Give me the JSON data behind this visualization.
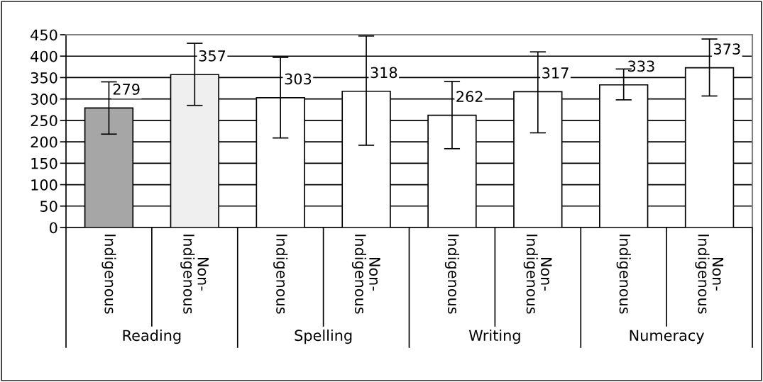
{
  "chart_data": {
    "type": "bar",
    "categories": [
      "Indigenous",
      "Non-Indigenous",
      "Indigenous",
      "Non-Indigenous",
      "Indigenous",
      "Non-Indigenous",
      "Indigenous",
      "Non-Indigenous"
    ],
    "values": [
      279,
      357,
      303,
      318,
      262,
      317,
      333,
      373
    ],
    "colors": [
      "#a6a6a6",
      "#efefef",
      "#ffffff",
      "#ffffff",
      "#ffffff",
      "#ffffff",
      "#ffffff",
      "#ffffff"
    ],
    "errors": [
      [
        218,
        340
      ],
      [
        285,
        430
      ],
      [
        209,
        397
      ],
      [
        192,
        447
      ],
      [
        184,
        341
      ],
      [
        221,
        410
      ],
      [
        298,
        370
      ],
      [
        307,
        440
      ]
    ],
    "annotations": [
      "Reading",
      "Spelling",
      "Writing",
      "Numeracy"
    ],
    "ylim": [
      0,
      450
    ],
    "yticks": [
      0,
      50,
      100,
      150,
      200,
      250,
      300,
      350,
      400,
      450
    ],
    "data_labels": true,
    "grid": "y",
    "legend": false
  }
}
